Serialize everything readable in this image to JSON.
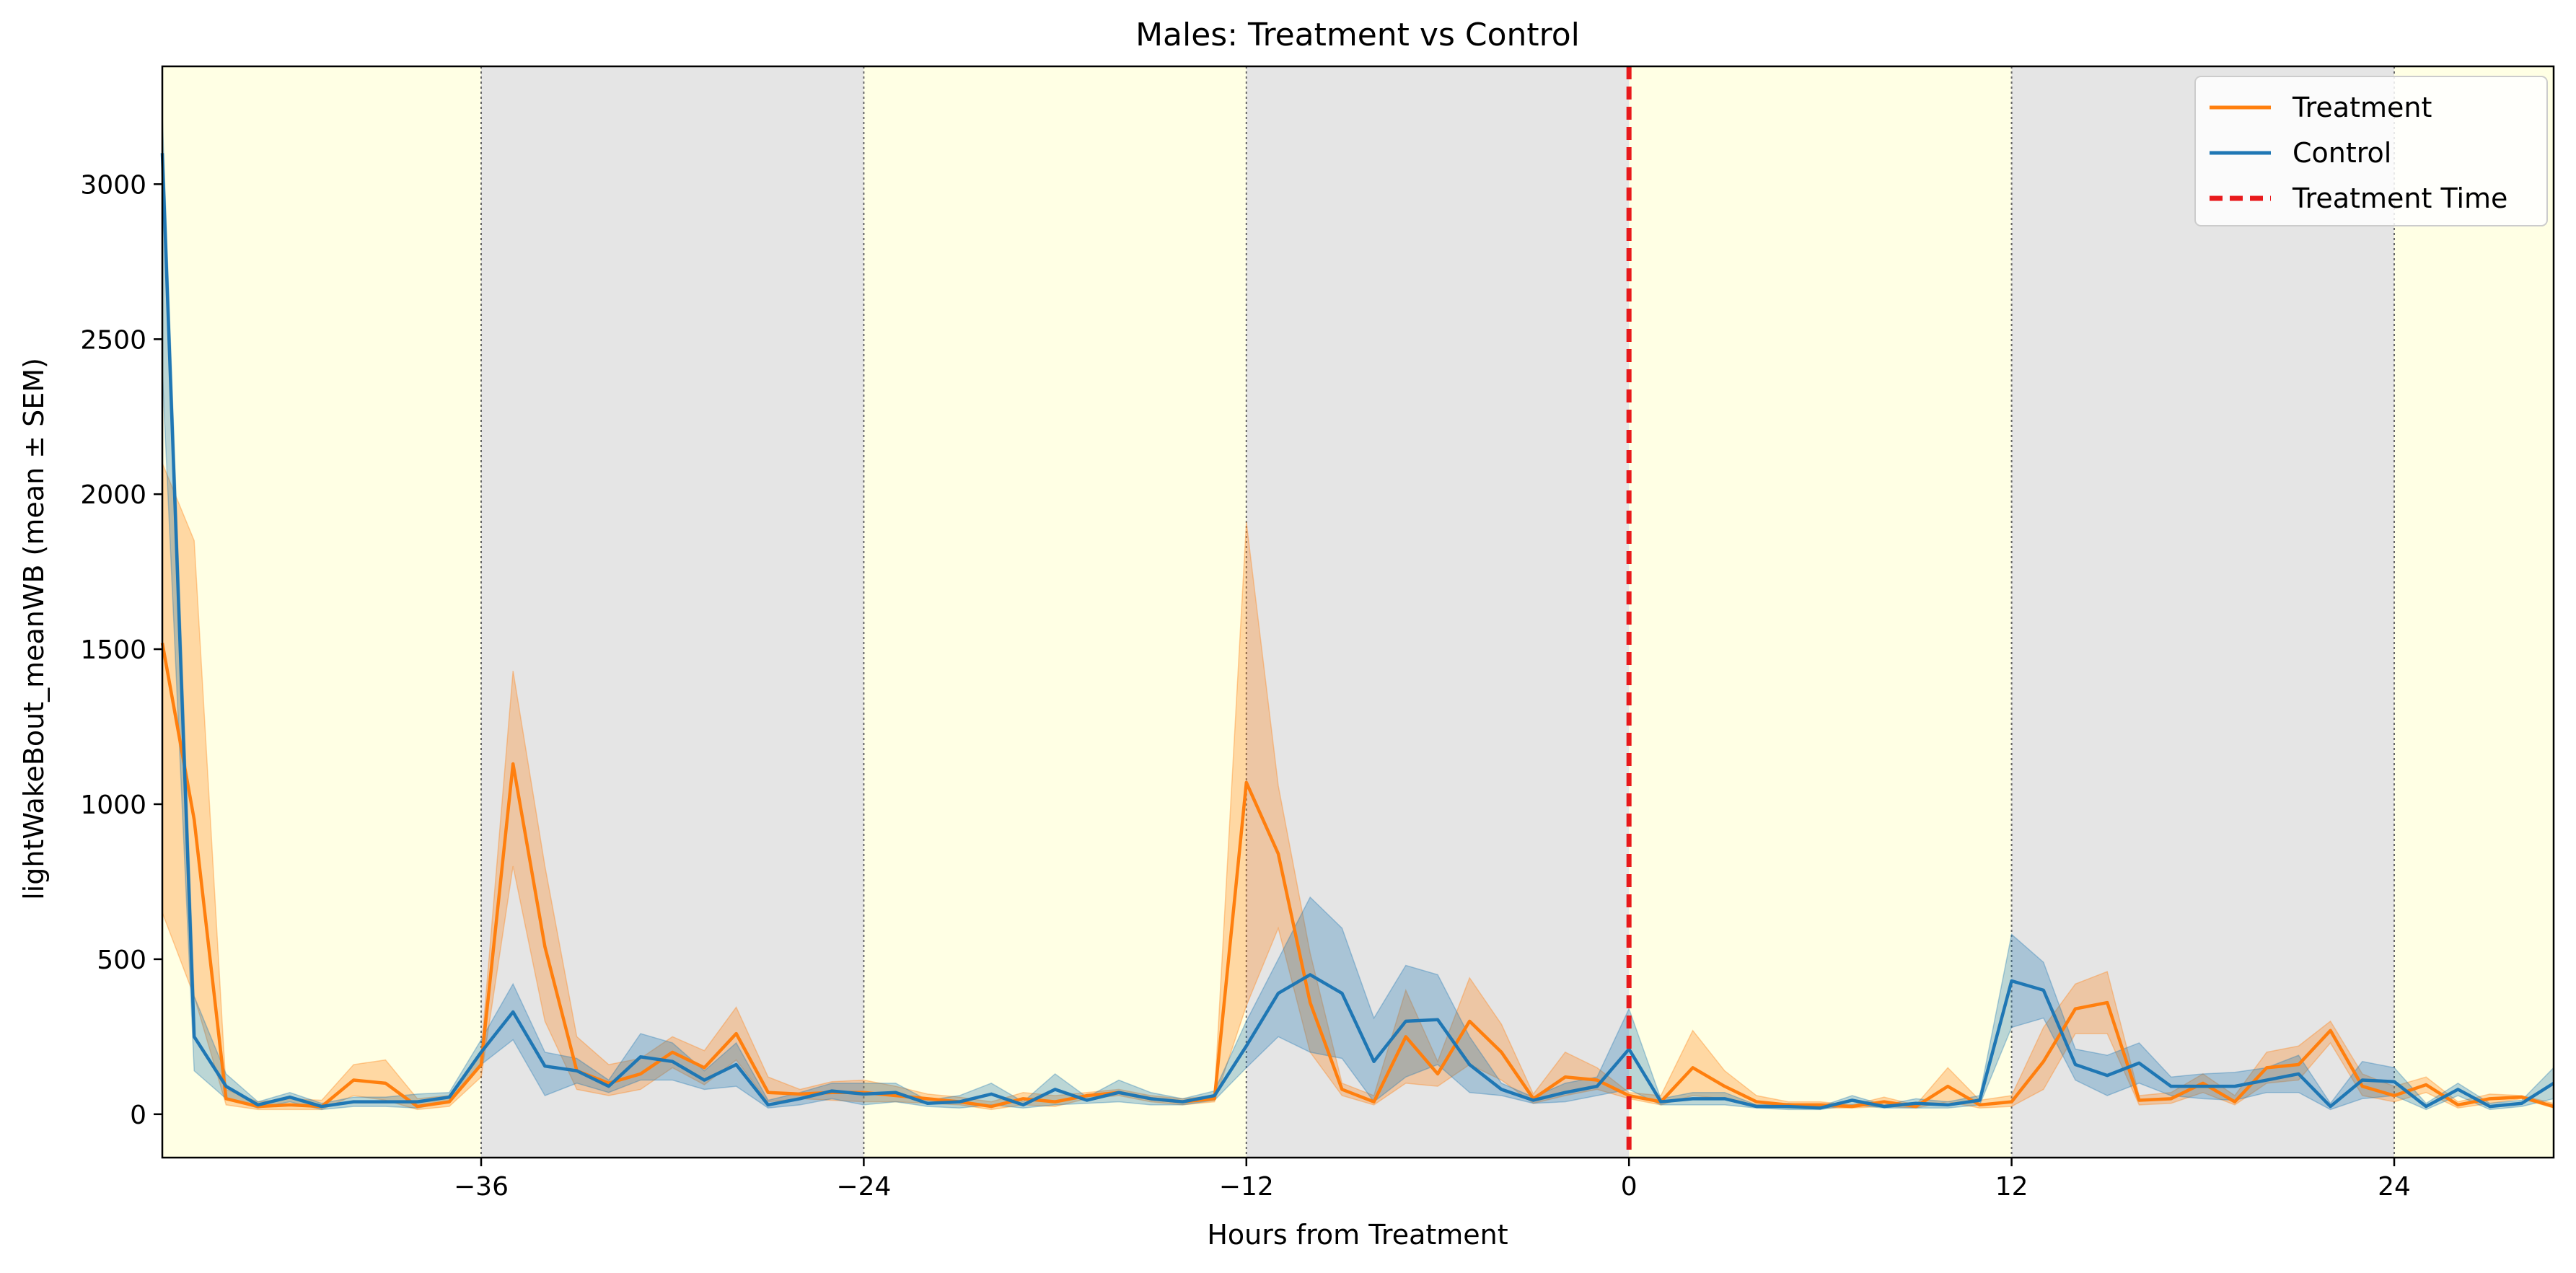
{
  "chart_data": {
    "type": "line",
    "title": "Males: Treatment vs Control",
    "xlabel": "Hours from Treatment",
    "ylabel": "lightWakeBout_meanWB (mean ± SEM)",
    "xlim": [
      -46,
      29
    ],
    "ylim": [
      -140,
      3380
    ],
    "x_ticks": [
      -36,
      -24,
      -12,
      0,
      12,
      24
    ],
    "x_tick_labels": [
      "−36",
      "−24",
      "−12",
      "0",
      "12",
      "24"
    ],
    "y_ticks": [
      0,
      500,
      1000,
      1500,
      2000,
      2500,
      3000
    ],
    "y_tick_labels": [
      "0",
      "500",
      "1000",
      "1500",
      "2000",
      "2500",
      "3000"
    ],
    "grid": false,
    "legend_position": "top-right",
    "background_bands": [
      {
        "phase": "light",
        "start": -46,
        "end": -36,
        "color": "#ffffe4"
      },
      {
        "phase": "dark",
        "start": -36,
        "end": -24,
        "color": "#e5e5e5"
      },
      {
        "phase": "light",
        "start": -24,
        "end": -12,
        "color": "#ffffe4"
      },
      {
        "phase": "dark",
        "start": -12,
        "end": 0,
        "color": "#e5e5e5"
      },
      {
        "phase": "light",
        "start": 0,
        "end": 12,
        "color": "#ffffe4"
      },
      {
        "phase": "dark",
        "start": 12,
        "end": 24,
        "color": "#e5e5e5"
      },
      {
        "phase": "light",
        "start": 24,
        "end": 29,
        "color": "#ffffe4"
      }
    ],
    "boundary_lines": [
      -36,
      -24,
      -12,
      12,
      24
    ],
    "treatment_time": 0,
    "treatment_color": "#e8191b",
    "series": [
      {
        "name": "Treatment",
        "color": "#ff7f0e",
        "x": [
          -46,
          -45,
          -44,
          -43,
          -42,
          -41,
          -40,
          -39,
          -38,
          -37,
          -36,
          -35,
          -34,
          -33,
          -32,
          -31,
          -30,
          -29,
          -28,
          -27,
          -26,
          -25,
          -24,
          -23,
          -22,
          -21,
          -20,
          -19,
          -18,
          -17,
          -16,
          -15,
          -14,
          -13,
          -12,
          -11,
          -10,
          -9,
          -8,
          -7,
          -6,
          -5,
          -4,
          -3,
          -2,
          -1,
          0,
          1,
          2,
          3,
          4,
          5,
          6,
          7,
          8,
          9,
          10,
          11,
          12,
          13,
          14,
          15,
          16,
          17,
          18,
          19,
          20,
          21,
          22,
          23,
          24,
          25,
          26,
          27,
          28,
          29
        ],
        "mean": [
          1520,
          950,
          50,
          25,
          30,
          25,
          110,
          100,
          25,
          40,
          160,
          1130,
          540,
          140,
          100,
          130,
          200,
          150,
          260,
          70,
          65,
          70,
          70,
          60,
          50,
          40,
          25,
          50,
          40,
          60,
          70,
          50,
          40,
          50,
          1070,
          840,
          360,
          80,
          40,
          250,
          130,
          300,
          200,
          50,
          120,
          110,
          60,
          40,
          150,
          90,
          40,
          30,
          30,
          25,
          40,
          25,
          90,
          30,
          40,
          170,
          340,
          360,
          45,
          50,
          100,
          40,
          150,
          160,
          270,
          90,
          60,
          95,
          30,
          50,
          55,
          25
        ],
        "upper": [
          2100,
          1850,
          80,
          40,
          50,
          45,
          160,
          175,
          50,
          60,
          200,
          1430,
          800,
          250,
          160,
          180,
          250,
          205,
          345,
          120,
          80,
          105,
          110,
          90,
          65,
          55,
          40,
          70,
          60,
          70,
          80,
          60,
          50,
          60,
          1910,
          1060,
          520,
          100,
          60,
          400,
          170,
          440,
          290,
          65,
          200,
          150,
          70,
          60,
          270,
          140,
          60,
          40,
          40,
          30,
          55,
          30,
          150,
          45,
          60,
          280,
          420,
          460,
          60,
          70,
          130,
          60,
          200,
          220,
          300,
          130,
          90,
          120,
          40,
          65,
          60,
          35
        ],
        "lower": [
          650,
          380,
          30,
          15,
          15,
          15,
          60,
          45,
          15,
          25,
          120,
          800,
          300,
          80,
          60,
          80,
          150,
          95,
          175,
          40,
          50,
          45,
          40,
          40,
          35,
          30,
          15,
          30,
          25,
          50,
          60,
          40,
          30,
          40,
          350,
          600,
          200,
          60,
          30,
          100,
          90,
          160,
          110,
          35,
          60,
          80,
          50,
          30,
          60,
          50,
          30,
          20,
          20,
          20,
          25,
          20,
          40,
          20,
          25,
          80,
          260,
          260,
          30,
          35,
          70,
          30,
          100,
          110,
          230,
          60,
          40,
          70,
          20,
          35,
          50,
          20
        ]
      },
      {
        "name": "Control",
        "color": "#1f77b4",
        "x": [
          -46,
          -45,
          -44,
          -43,
          -42,
          -41,
          -40,
          -39,
          -38,
          -37,
          -36,
          -35,
          -34,
          -33,
          -32,
          -31,
          -30,
          -29,
          -28,
          -27,
          -26,
          -25,
          -24,
          -23,
          -22,
          -21,
          -20,
          -19,
          -18,
          -17,
          -16,
          -15,
          -14,
          -13,
          -12,
          -11,
          -10,
          -9,
          -8,
          -7,
          -6,
          -5,
          -4,
          -3,
          -2,
          -1,
          0,
          1,
          2,
          3,
          4,
          5,
          6,
          7,
          8,
          9,
          10,
          11,
          12,
          13,
          14,
          15,
          16,
          17,
          18,
          19,
          20,
          21,
          22,
          23,
          24,
          25,
          26,
          27,
          28,
          29
        ],
        "mean": [
          3100,
          250,
          90,
          30,
          55,
          25,
          40,
          40,
          40,
          55,
          200,
          330,
          155,
          140,
          90,
          185,
          170,
          110,
          160,
          30,
          50,
          75,
          65,
          70,
          35,
          40,
          65,
          30,
          80,
          45,
          70,
          50,
          40,
          60,
          220,
          390,
          450,
          390,
          170,
          300,
          305,
          160,
          80,
          45,
          70,
          90,
          210,
          40,
          50,
          50,
          25,
          25,
          20,
          45,
          25,
          35,
          30,
          45,
          430,
          400,
          160,
          125,
          165,
          90,
          90,
          90,
          110,
          130,
          25,
          110,
          105,
          25,
          80,
          25,
          35,
          100
        ],
        "upper": [
          3220,
          380,
          130,
          40,
          70,
          35,
          55,
          55,
          65,
          70,
          240,
          420,
          200,
          180,
          110,
          260,
          230,
          140,
          230,
          45,
          70,
          100,
          100,
          100,
          45,
          60,
          100,
          40,
          130,
          55,
          110,
          70,
          50,
          75,
          300,
          500,
          700,
          600,
          310,
          480,
          450,
          250,
          100,
          55,
          100,
          120,
          340,
          50,
          70,
          70,
          30,
          35,
          25,
          60,
          30,
          50,
          40,
          60,
          580,
          490,
          210,
          190,
          230,
          120,
          130,
          135,
          150,
          190,
          35,
          170,
          150,
          35,
          100,
          35,
          45,
          150
        ],
        "lower": [
          2400,
          140,
          50,
          20,
          40,
          15,
          25,
          25,
          20,
          40,
          160,
          240,
          60,
          100,
          70,
          110,
          110,
          80,
          90,
          20,
          30,
          50,
          30,
          40,
          25,
          20,
          30,
          20,
          30,
          35,
          40,
          30,
          30,
          45,
          150,
          250,
          200,
          180,
          40,
          120,
          160,
          70,
          60,
          35,
          40,
          60,
          80,
          30,
          30,
          30,
          20,
          15,
          15,
          30,
          20,
          20,
          20,
          30,
          280,
          310,
          110,
          60,
          100,
          60,
          50,
          45,
          70,
          70,
          15,
          50,
          60,
          15,
          60,
          15,
          25,
          50
        ]
      }
    ]
  },
  "legend": {
    "items": [
      {
        "label": "Treatment",
        "color": "#ff7f0e",
        "style": "solid"
      },
      {
        "label": "Control",
        "color": "#1f77b4",
        "style": "solid"
      },
      {
        "label": "Treatment Time",
        "color": "#e8191b",
        "style": "dashed"
      }
    ]
  }
}
